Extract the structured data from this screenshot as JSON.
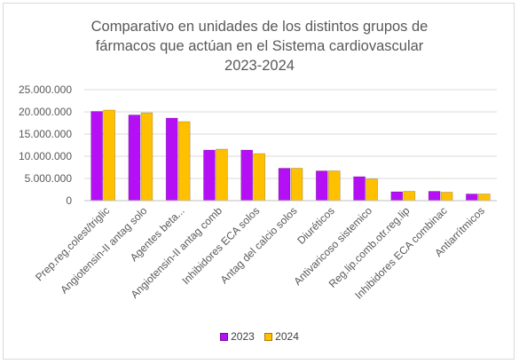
{
  "chart_data": {
    "type": "bar",
    "title_lines": [
      "Comparativo en unidades de los distintos grupos de",
      "fármacos que actúan en el Sistema cardiovascular",
      "2023-2024"
    ],
    "categories": [
      "Prep.reg.colest/triglic",
      "Angiotensin-II antag solo",
      "Agentes beta...",
      "Angiotensin-II antag comb",
      "Inhibidores ECA solos",
      "Antag del calcio solos",
      "Diuréticos",
      "Antivaricoso sistemico",
      "Reg.lip.comb.otr.reg.lip",
      "Inhibidores ECA combinac",
      "Antiarrítmicos"
    ],
    "series": [
      {
        "name": "2023",
        "color": "#B40FF5",
        "values": [
          20100000,
          19300000,
          18600000,
          11400000,
          11400000,
          7300000,
          6700000,
          5400000,
          2000000,
          2100000,
          1500000
        ]
      },
      {
        "name": "2024",
        "color": "#FFC000",
        "values": [
          20400000,
          19800000,
          17800000,
          11600000,
          10600000,
          7300000,
          6700000,
          4900000,
          2100000,
          1900000,
          1500000
        ]
      }
    ],
    "ylim": [
      0,
      25000000
    ],
    "y_ticks": [
      0,
      5000000,
      10000000,
      15000000,
      20000000,
      25000000
    ],
    "y_tick_labels": [
      "0",
      "5.000.000",
      "10.000.000",
      "15.000.000",
      "20.000.000",
      "25.000.000"
    ],
    "grid": true,
    "legend_position": "bottom"
  }
}
